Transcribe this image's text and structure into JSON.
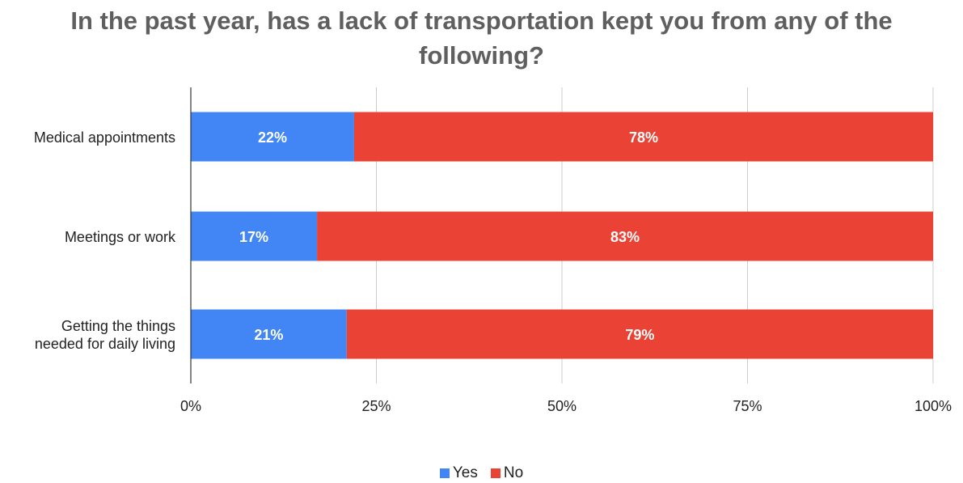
{
  "chart_data": {
    "type": "bar",
    "orientation": "horizontal",
    "stacked": true,
    "title": "In the past year, has a lack of transportation kept you from any of the following?",
    "categories": [
      [
        "Medical appointments"
      ],
      [
        "Meetings or work"
      ],
      [
        "Getting the things",
        "needed for daily living"
      ]
    ],
    "series": [
      {
        "name": "Yes",
        "color": "#4285f4",
        "values": [
          22,
          17,
          21
        ],
        "labels": [
          "22%",
          "17%",
          "21%"
        ]
      },
      {
        "name": "No",
        "color": "#ea4335",
        "values": [
          78,
          83,
          79
        ],
        "labels": [
          "78%",
          "83%",
          "79%"
        ]
      }
    ],
    "xlim": [
      0,
      100
    ],
    "x_ticks": [
      0,
      25,
      50,
      75,
      100
    ],
    "x_tick_labels": [
      "0%",
      "25%",
      "50%",
      "75%",
      "100%"
    ],
    "grid": true,
    "legend_position": "bottom"
  }
}
